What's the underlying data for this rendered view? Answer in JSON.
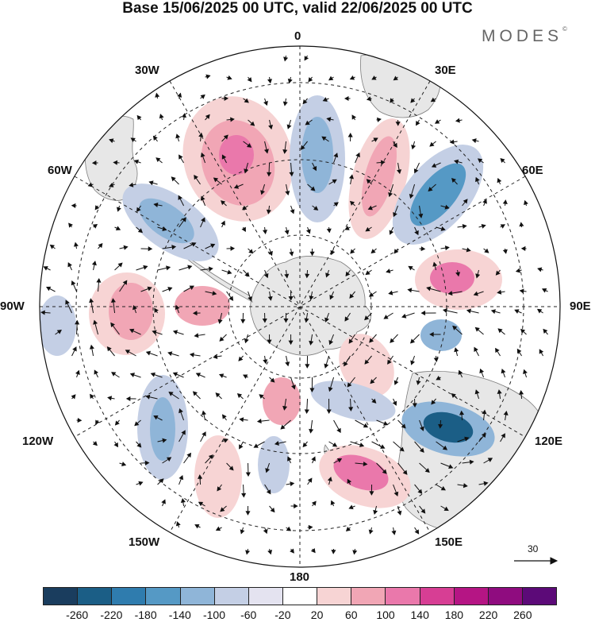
{
  "title": "Base 15/06/2025 00 UTC, valid 22/06/2025 00 UTC",
  "brand": "MODES",
  "brand_mark": "©",
  "map": {
    "projection": "south polar stereographic",
    "longitude_labels": {
      "top": "0",
      "bottom": "180",
      "left": "90W",
      "right": "90E",
      "upper_left_30": "30W",
      "upper_right_30": "30E",
      "left_60_top": "60W",
      "right_60_top": "60E",
      "left_120": "120W",
      "right_120": "120E",
      "lower_left_150": "150W",
      "lower_right_150": "150E"
    },
    "reference_vector_label": "30"
  },
  "colors": {
    "negative_strong": "#1b5e86",
    "negative_weak": "#dcdcec",
    "positive_weak": "#f6d3d3",
    "positive_strong": "#d1368b",
    "land": "#e7e7e7",
    "coastline": "#7d7d7d",
    "grid": "#222222"
  },
  "colorbar": {
    "colors": [
      "#1a3d5e",
      "#1b5e86",
      "#2f7cae",
      "#5599c5",
      "#8fb5d8",
      "#c4cfe5",
      "#e4e3f0",
      "#ffffff",
      "#f7d4d4",
      "#f1a6b5",
      "#ea78ab",
      "#d73e94",
      "#b51584",
      "#8f0c7f",
      "#5c0a78"
    ],
    "tick_labels": [
      "-260",
      "-220",
      "-180",
      "-140",
      "-100",
      "-60",
      "-20",
      "20",
      "60",
      "100",
      "140",
      "180",
      "220",
      "260"
    ]
  }
}
